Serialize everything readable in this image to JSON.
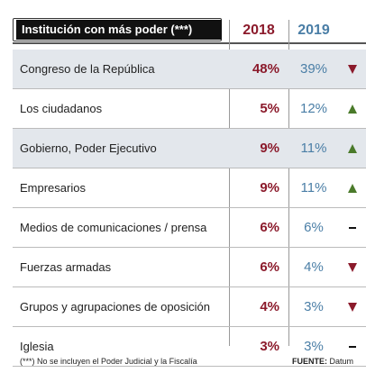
{
  "colors": {
    "year_2018": "#8b1a2b",
    "year_2019": "#4a7ea6",
    "up": "#4a7a2a",
    "down": "#8b1a2b",
    "flat": "#111111"
  },
  "chart_data": {
    "type": "table",
    "title": "Institución con más poder (***)",
    "columns": [
      "2018",
      "2019"
    ],
    "rows": [
      {
        "label": "Congreso de la República",
        "v2018": "48%",
        "v2019": "39%",
        "trend": "down"
      },
      {
        "label": "Los ciudadanos",
        "v2018": "5%",
        "v2019": "12%",
        "trend": "up"
      },
      {
        "label": "Gobierno, Poder Ejecutivo",
        "v2018": "9%",
        "v2019": "11%",
        "trend": "up"
      },
      {
        "label": "Empresarios",
        "v2018": "9%",
        "v2019": "11%",
        "trend": "up"
      },
      {
        "label": "Medios de comunicaciones / prensa",
        "v2018": "6%",
        "v2019": "6%",
        "trend": "flat"
      },
      {
        "label": "Fuerzas armadas",
        "v2018": "6%",
        "v2019": "4%",
        "trend": "down"
      },
      {
        "label": "Grupos y agrupaciones de oposición",
        "v2018": "4%",
        "v2019": "3%",
        "trend": "down"
      },
      {
        "label": "Iglesia",
        "v2018": "3%",
        "v2019": "3%",
        "trend": "flat"
      }
    ],
    "footnote": "(***) No se incluyen el Poder Judicial y la Fiscalía",
    "source_label": "FUENTE:",
    "source": "Datum"
  }
}
